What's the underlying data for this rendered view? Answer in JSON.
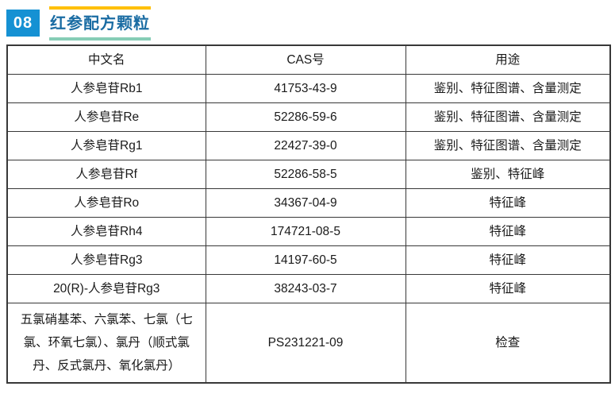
{
  "header": {
    "number": "08",
    "title": "红参配方颗粒",
    "colors": {
      "badge_bg": "#1591d3",
      "title_text": "#1a6ca3",
      "accent_bar_top": "#ffc000",
      "accent_bar_bottom": "#86cdb6",
      "table_border": "#383838"
    }
  },
  "table": {
    "columns": [
      "中文名",
      "CAS号",
      "用途"
    ],
    "rows": [
      {
        "name": "人参皂苷Rb1",
        "cas": "41753-43-9",
        "use": "鉴别、特征图谱、含量测定"
      },
      {
        "name": "人参皂苷Re",
        "cas": "52286-59-6",
        "use": "鉴别、特征图谱、含量测定"
      },
      {
        "name": "人参皂苷Rg1",
        "cas": "22427-39-0",
        "use": "鉴别、特征图谱、含量测定"
      },
      {
        "name": "人参皂苷Rf",
        "cas": "52286-58-5",
        "use": "鉴别、特征峰"
      },
      {
        "name": "人参皂苷Ro",
        "cas": "34367-04-9",
        "use": "特征峰"
      },
      {
        "name": "人参皂苷Rh4",
        "cas": "174721-08-5",
        "use": "特征峰"
      },
      {
        "name": "人参皂苷Rg3",
        "cas": "14197-60-5",
        "use": "特征峰"
      },
      {
        "name": "20(R)-人参皂苷Rg3",
        "cas": "38243-03-7",
        "use": "特征峰"
      },
      {
        "name": "五氯硝基苯、六氯苯、七氯（七氯、环氧七氯）、氯丹（顺式氯丹、反式氯丹、氧化氯丹）",
        "cas": "PS231221-09",
        "use": "检查"
      }
    ]
  }
}
